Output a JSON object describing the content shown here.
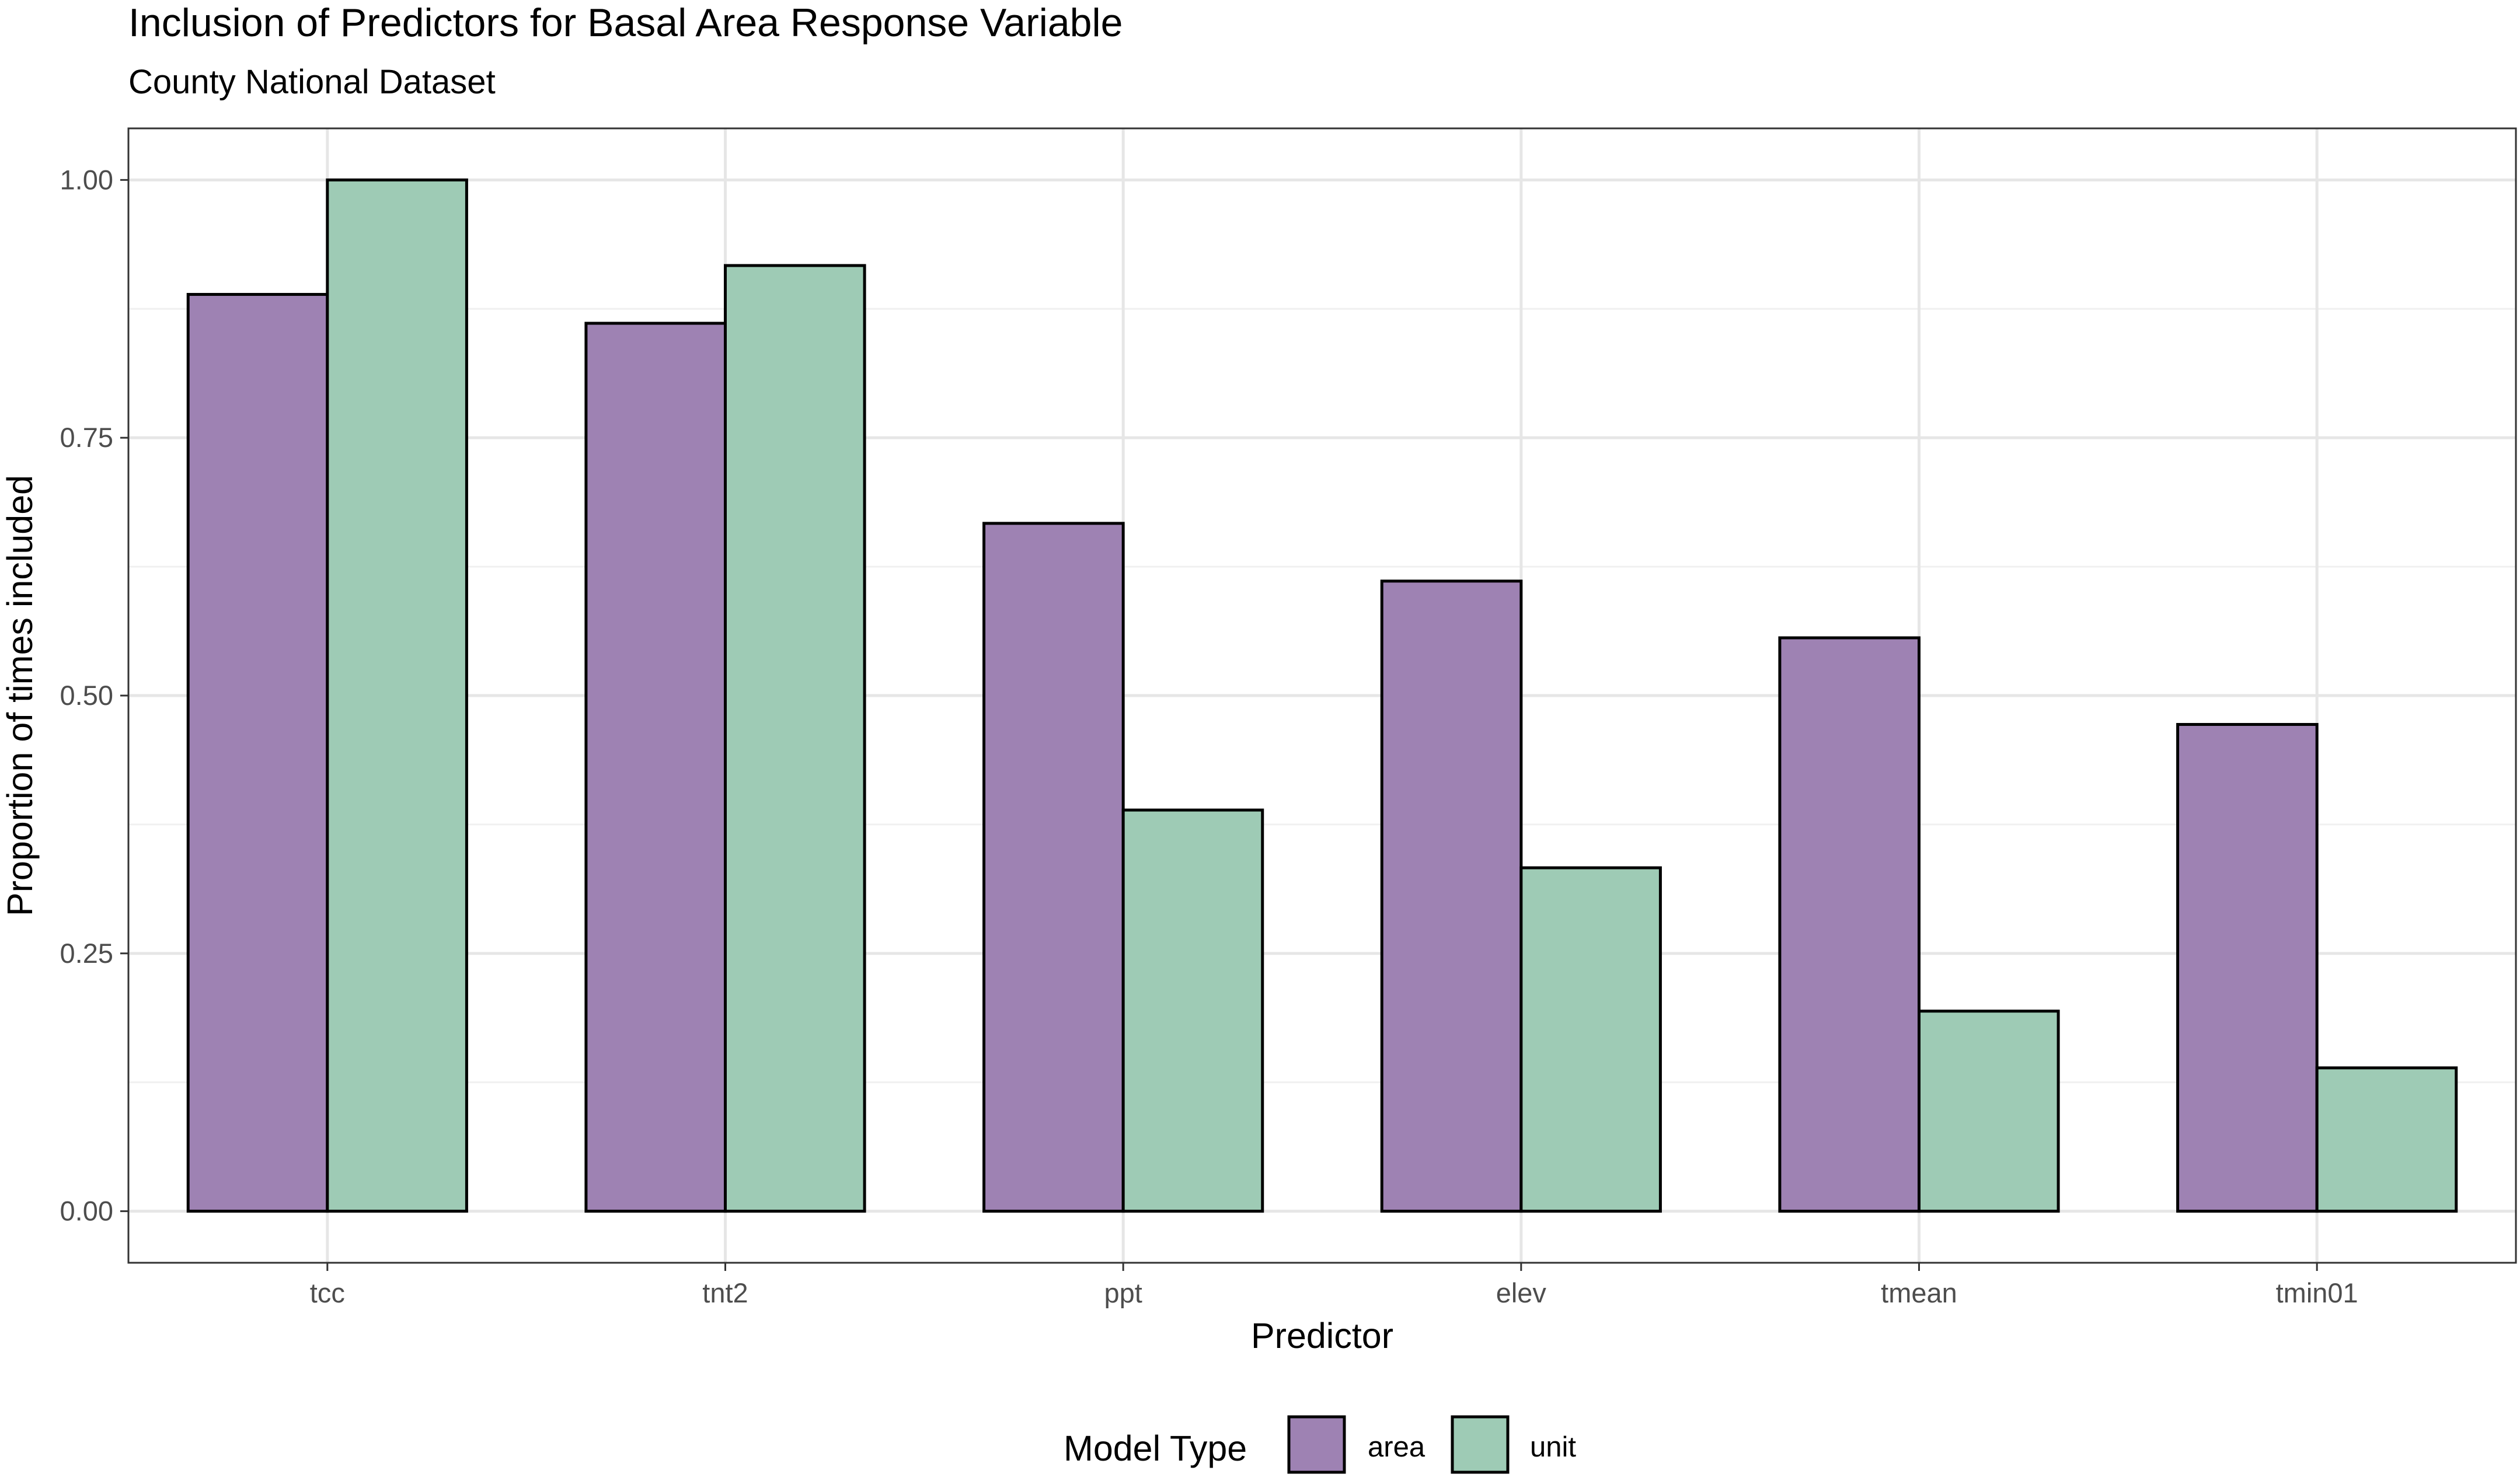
{
  "chart_data": {
    "type": "bar",
    "title": "Inclusion of Predictors for Basal Area Response Variable",
    "subtitle": "County National Dataset",
    "xlabel": "Predictor",
    "ylabel": "Proportion of times included",
    "categories": [
      "tcc",
      "tnt2",
      "ppt",
      "elev",
      "tmean",
      "tmin01"
    ],
    "series": [
      {
        "name": "area",
        "color": "#9e82b3",
        "values": [
          0.889,
          0.861,
          0.667,
          0.611,
          0.556,
          0.472
        ]
      },
      {
        "name": "unit",
        "color": "#9ecbb5",
        "values": [
          1.0,
          0.917,
          0.389,
          0.333,
          0.194,
          0.139
        ]
      }
    ],
    "ylim": [
      -0.05,
      1.05
    ],
    "yticks": [
      0.0,
      0.25,
      0.5,
      0.75,
      1.0
    ],
    "ytick_labels": [
      "0.00",
      "0.25",
      "0.50",
      "0.75",
      "1.00"
    ],
    "grid": true,
    "legend": {
      "title": "Model Type",
      "position": "bottom"
    }
  }
}
